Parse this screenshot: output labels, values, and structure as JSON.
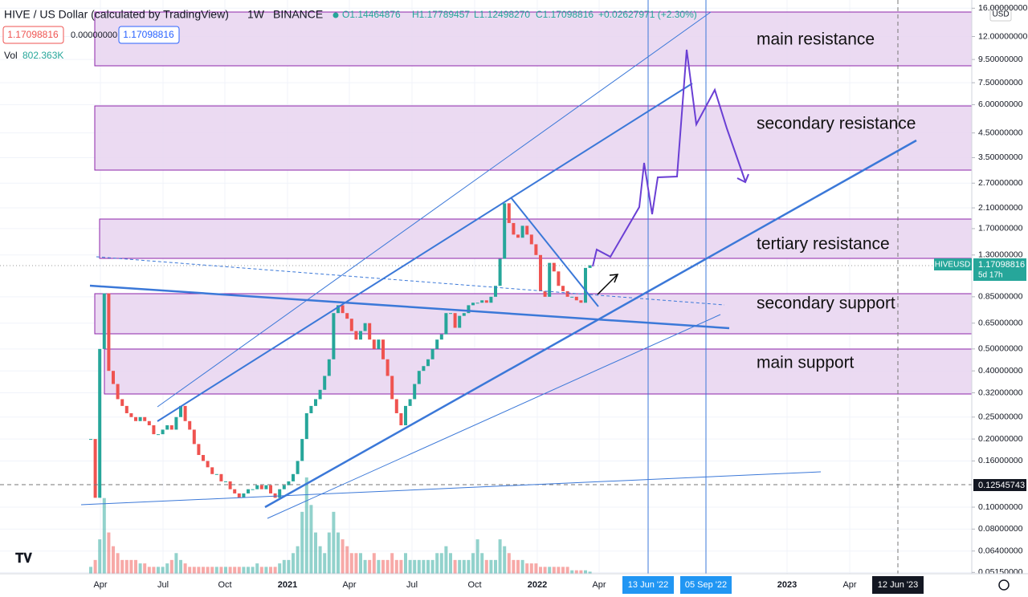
{
  "header": {
    "symbol": "HIVE / US Dollar (calculated by TradingView)",
    "interval": "1W",
    "exchange": "BINANCE",
    "ohlc": [
      "O1.14464876",
      "H1.17789457",
      "L1.12498270",
      "C1.17098816"
    ],
    "change": "+0.02627971 (+2.30%)",
    "boxes": [
      "1.17098816",
      "0.00000000",
      "1.17098816"
    ],
    "vol_label": "Vol",
    "vol_value": "802.363K",
    "currency": "USD"
  },
  "price_tags": {
    "symbol": "HIVEUSD",
    "price": "1.17098816",
    "countdown": "5d 17h",
    "line_price": "0.12545743"
  },
  "zones": [
    "main resistance",
    "secondary resistance",
    "tertiary resistance",
    "secondary support",
    "main support"
  ],
  "time_axis": [
    "Apr",
    "Jul",
    "Oct",
    "2021",
    "Apr",
    "Jul",
    "Oct",
    "2022",
    "Apr",
    "13 Jun '22",
    "05 Sep '22",
    "2023",
    "Apr",
    "12 Jun '23"
  ],
  "chart_data": {
    "type": "candlestick",
    "log_scale": true,
    "values": [
      0.2,
      0.11,
      0.5,
      0.88,
      0.4,
      0.35,
      0.3,
      0.28,
      0.26,
      0.25,
      0.24,
      0.25,
      0.24,
      0.23,
      0.21,
      0.21,
      0.22,
      0.23,
      0.22,
      0.25,
      0.28,
      0.24,
      0.22,
      0.19,
      0.17,
      0.16,
      0.15,
      0.14,
      0.14,
      0.13,
      0.13,
      0.12,
      0.115,
      0.11,
      0.115,
      0.12,
      0.12,
      0.125,
      0.12,
      0.125,
      0.115,
      0.11,
      0.12,
      0.125,
      0.13,
      0.14,
      0.16,
      0.2,
      0.26,
      0.28,
      0.3,
      0.33,
      0.38,
      0.45,
      0.72,
      0.78,
      0.72,
      0.68,
      0.6,
      0.55,
      0.6,
      0.65,
      0.55,
      0.5,
      0.55,
      0.45,
      0.38,
      0.3,
      0.26,
      0.23,
      0.28,
      0.3,
      0.35,
      0.4,
      0.42,
      0.45,
      0.5,
      0.55,
      0.58,
      0.72,
      0.72,
      0.62,
      0.7,
      0.72,
      0.78,
      0.8,
      0.8,
      0.82,
      0.8,
      0.85,
      0.95,
      1.25,
      2.2,
      1.8,
      1.6,
      1.55,
      1.75,
      1.6,
      1.45,
      1.3,
      0.9,
      0.85,
      1.2,
      1.1,
      0.95,
      0.9,
      0.85,
      0.85,
      0.82,
      0.8,
      1.14,
      1.17098816
    ],
    "volume": [
      1,
      2,
      5,
      11,
      6,
      4,
      3,
      2,
      2,
      2,
      2,
      1.5,
      1.5,
      1,
      1,
      1,
      1,
      1.5,
      2,
      3,
      2,
      1.5,
      1,
      1,
      1,
      1,
      1,
      1,
      1,
      1,
      1,
      1,
      1,
      1,
      1,
      1,
      1,
      1.5,
      1,
      1,
      1,
      1,
      1.5,
      2,
      2,
      3,
      4,
      9,
      14,
      10,
      6,
      4,
      3,
      6,
      9,
      6,
      5,
      4,
      3,
      3,
      3,
      2,
      2,
      3,
      2,
      2,
      2,
      3,
      2,
      2,
      3,
      2,
      2,
      2,
      2,
      2,
      2,
      3,
      3,
      4,
      3,
      2,
      2,
      2,
      2,
      3,
      5,
      3,
      2,
      2,
      2,
      5,
      4,
      3,
      2,
      2,
      2,
      1.5,
      1.5,
      1.5,
      1,
      1,
      1,
      1,
      1,
      1,
      1,
      0.5,
      0.5,
      0.5,
      0.5,
      0.3
    ],
    "up_color": "#26a69a",
    "down_color": "#ef5350",
    "ylim": [
      0.0508,
      17.4
    ],
    "yticks": [
      {
        "value": 16,
        "label": "16.00000000"
      },
      {
        "value": 12,
        "label": "12.00000000"
      },
      {
        "value": 9.5,
        "label": "9.50000000"
      },
      {
        "value": 7.5,
        "label": "7.50000000"
      },
      {
        "value": 6,
        "label": "6.00000000"
      },
      {
        "value": 4.5,
        "label": "4.50000000"
      },
      {
        "value": 3.5,
        "label": "3.50000000"
      },
      {
        "value": 2.7,
        "label": "2.70000000"
      },
      {
        "value": 2.1,
        "label": "2.10000000"
      },
      {
        "value": 1.7,
        "label": "1.70000000"
      },
      {
        "value": 1.3,
        "label": "1.30000000"
      },
      {
        "value": 0.85,
        "label": "0.85000000"
      },
      {
        "value": 0.65,
        "label": "0.65000000"
      },
      {
        "value": 0.5,
        "label": "0.50000000"
      },
      {
        "value": 0.4,
        "label": "0.40000000"
      },
      {
        "value": 0.32,
        "label": "0.32000000"
      },
      {
        "value": 0.25,
        "label": "0.25000000"
      },
      {
        "value": 0.2,
        "label": "0.20000000"
      },
      {
        "value": 0.16,
        "label": "0.16000000"
      },
      {
        "value": 0.1,
        "label": "0.10000000"
      },
      {
        "value": 0.08,
        "label": "0.08000000"
      },
      {
        "value": 0.064,
        "label": "0.06400000"
      },
      {
        "value": 0.0515,
        "label": "0.05150000"
      }
    ],
    "grid": true
  }
}
